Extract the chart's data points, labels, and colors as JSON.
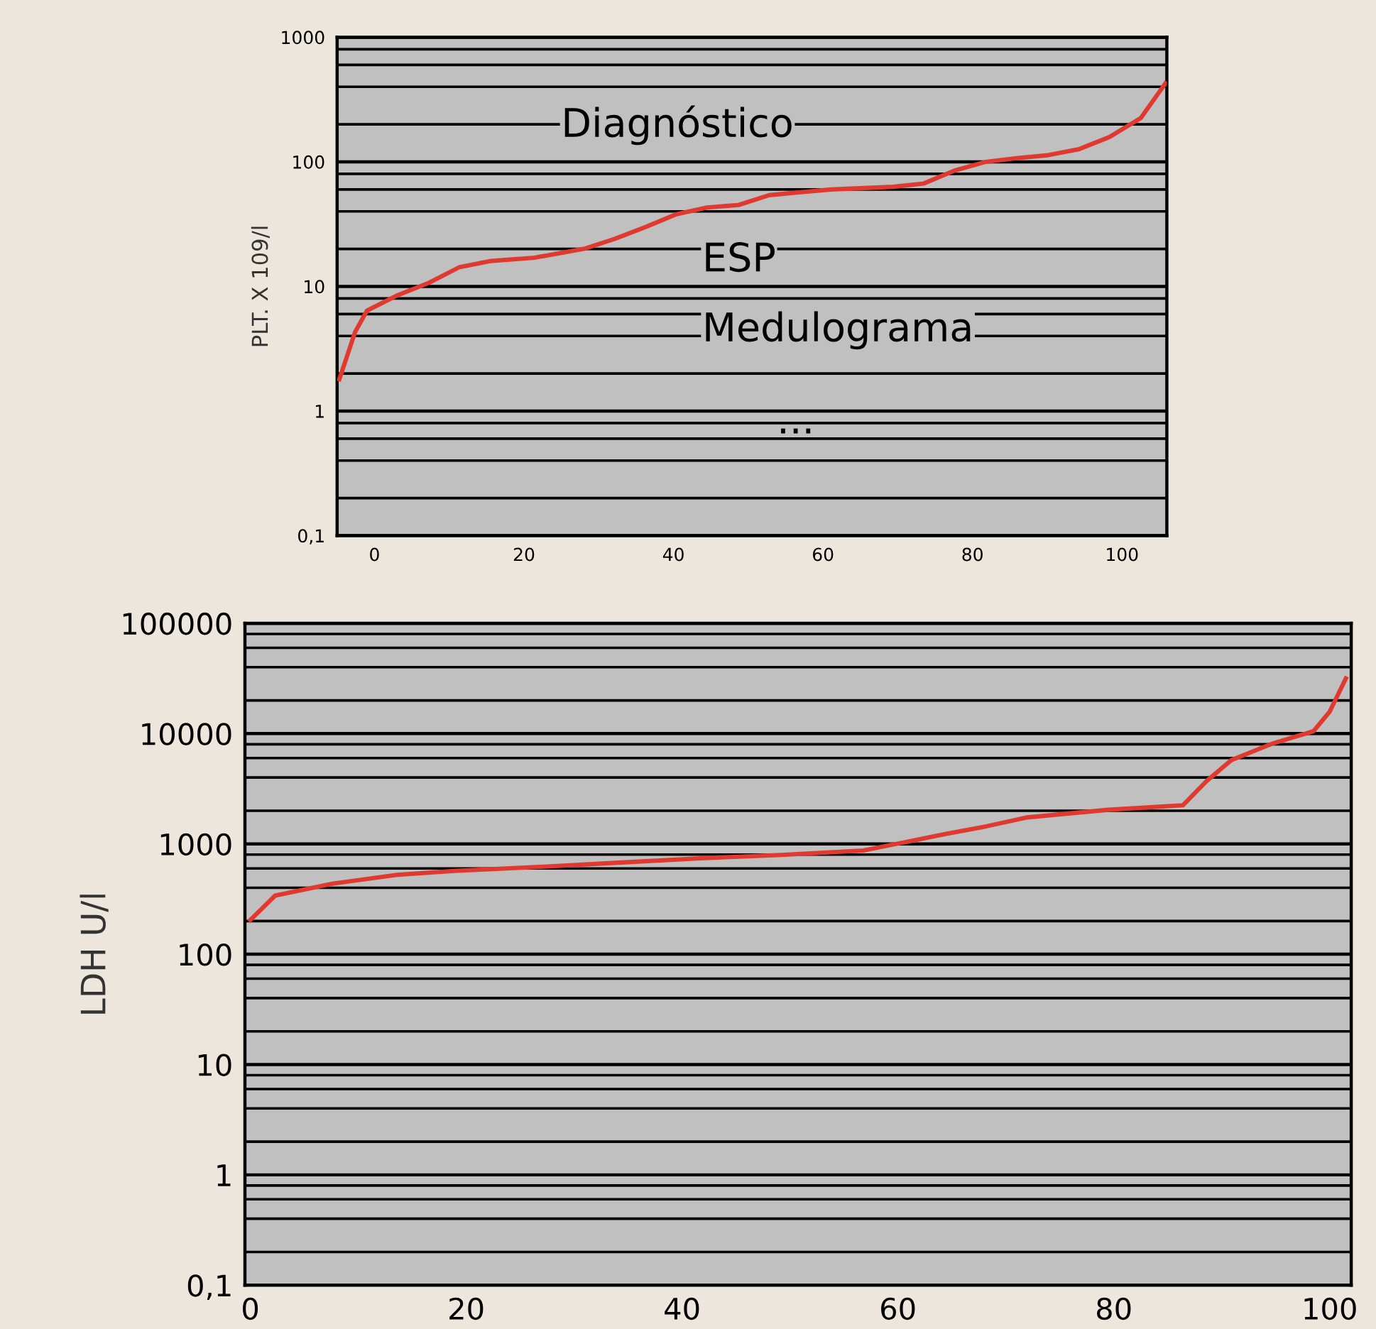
{
  "chart_data": [
    {
      "type": "line",
      "ylabel": "PLT. X 109/l",
      "log": true,
      "grid": "y",
      "marker": "none",
      "line_style": "solid",
      "xlim": [
        -5,
        106
      ],
      "xticks": [
        0,
        20,
        40,
        60,
        80,
        100
      ],
      "ylim": [
        0.1,
        1000
      ],
      "yticks": [
        {
          "value": 0.1,
          "label": "0,1"
        },
        1,
        10,
        100,
        1000
      ],
      "annotations": [
        "Diagnóstico",
        "ESP",
        "Medulograma",
        "..."
      ],
      "series": [
        {
          "color": "#e03a30",
          "x": [
            -4.7,
            -2.6,
            -1.0,
            3.1,
            7.3,
            11.4,
            15.6,
            21.4,
            28.0,
            32.1,
            36.3,
            40.4,
            44.5,
            48.7,
            52.8,
            57.0,
            61.1,
            69.4,
            73.5,
            77.6,
            81.8,
            85.9,
            90.1,
            94.2,
            98.3,
            102.5,
            105.8
          ],
          "values": [
            1.8,
            4.3,
            6.4,
            8.5,
            10.7,
            14.3,
            16,
            17,
            20,
            24,
            30,
            38,
            43,
            45,
            54,
            57,
            60,
            63,
            67,
            85,
            100,
            107,
            113,
            126,
            158,
            224,
            426
          ]
        }
      ]
    },
    {
      "type": "line",
      "ylabel": "LDH U/l",
      "log": true,
      "grid": "y",
      "marker": "none",
      "line_style": "solid",
      "xlim": [
        -0.5,
        102
      ],
      "xticks": [
        0,
        20,
        40,
        60,
        80,
        100
      ],
      "ylim": [
        0.1,
        100000
      ],
      "yticks": [
        {
          "value": 0.1,
          "label": "0,1"
        },
        1,
        10,
        100,
        1000,
        10000,
        100000
      ],
      "series": [
        {
          "color": "#e03a30",
          "x": [
            0,
            2.3,
            7.6,
            13.6,
            18.9,
            26.5,
            34.1,
            41.7,
            49.2,
            56.8,
            60.6,
            64.4,
            68.2,
            72.0,
            79.5,
            86.4,
            88.6,
            90.9,
            94.7,
            98.5,
            100,
            101.5
          ],
          "values": [
            204,
            340,
            436,
            525,
            569,
            617,
            676,
            741,
            794,
            871,
            1035,
            1230,
            1445,
            1740,
            2040,
            2240,
            3720,
            5750,
            8130,
            10500,
            15800,
            31600
          ]
        }
      ]
    }
  ]
}
